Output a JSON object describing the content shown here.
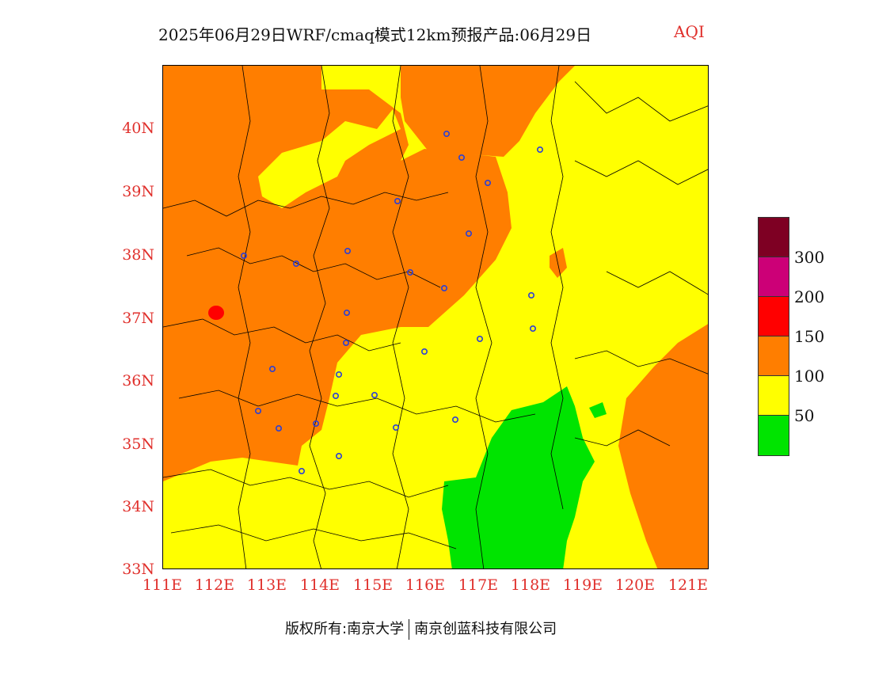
{
  "header": {
    "title": "2025年06月29日WRF/cmaq模式12km预报产品:06月29日",
    "product": "AQI"
  },
  "map": {
    "region": "North China Plain",
    "lat_ticks": [
      "40N",
      "39N",
      "38N",
      "37N",
      "36N",
      "35N",
      "34N",
      "33N"
    ],
    "lon_ticks": [
      "111E",
      "112E",
      "113E",
      "114E",
      "115E",
      "116E",
      "117E",
      "118E",
      "119E",
      "120E",
      "121E"
    ],
    "lat_range": [
      33,
      41
    ],
    "lon_range": [
      111,
      121.4
    ],
    "colors": {
      "good": "#00e400",
      "moderate": "#ffff00",
      "unhealthy_sensitive": "#ff7e00",
      "unhealthy": "#ff0000",
      "boundary": "#000000",
      "city_marker": "#2b3fd6"
    }
  },
  "legend": {
    "swatches": [
      {
        "color": "#7e0023"
      },
      {
        "color": "#cc0077"
      },
      {
        "color": "#ff0000"
      },
      {
        "color": "#ff7e00"
      },
      {
        "color": "#ffff00"
      },
      {
        "color": "#00e400"
      }
    ],
    "labels": [
      "300",
      "200",
      "150",
      "100",
      "50"
    ]
  },
  "footer": {
    "copyright": "版权所有:南京大学",
    "company": "南京创蓝科技有限公司"
  }
}
